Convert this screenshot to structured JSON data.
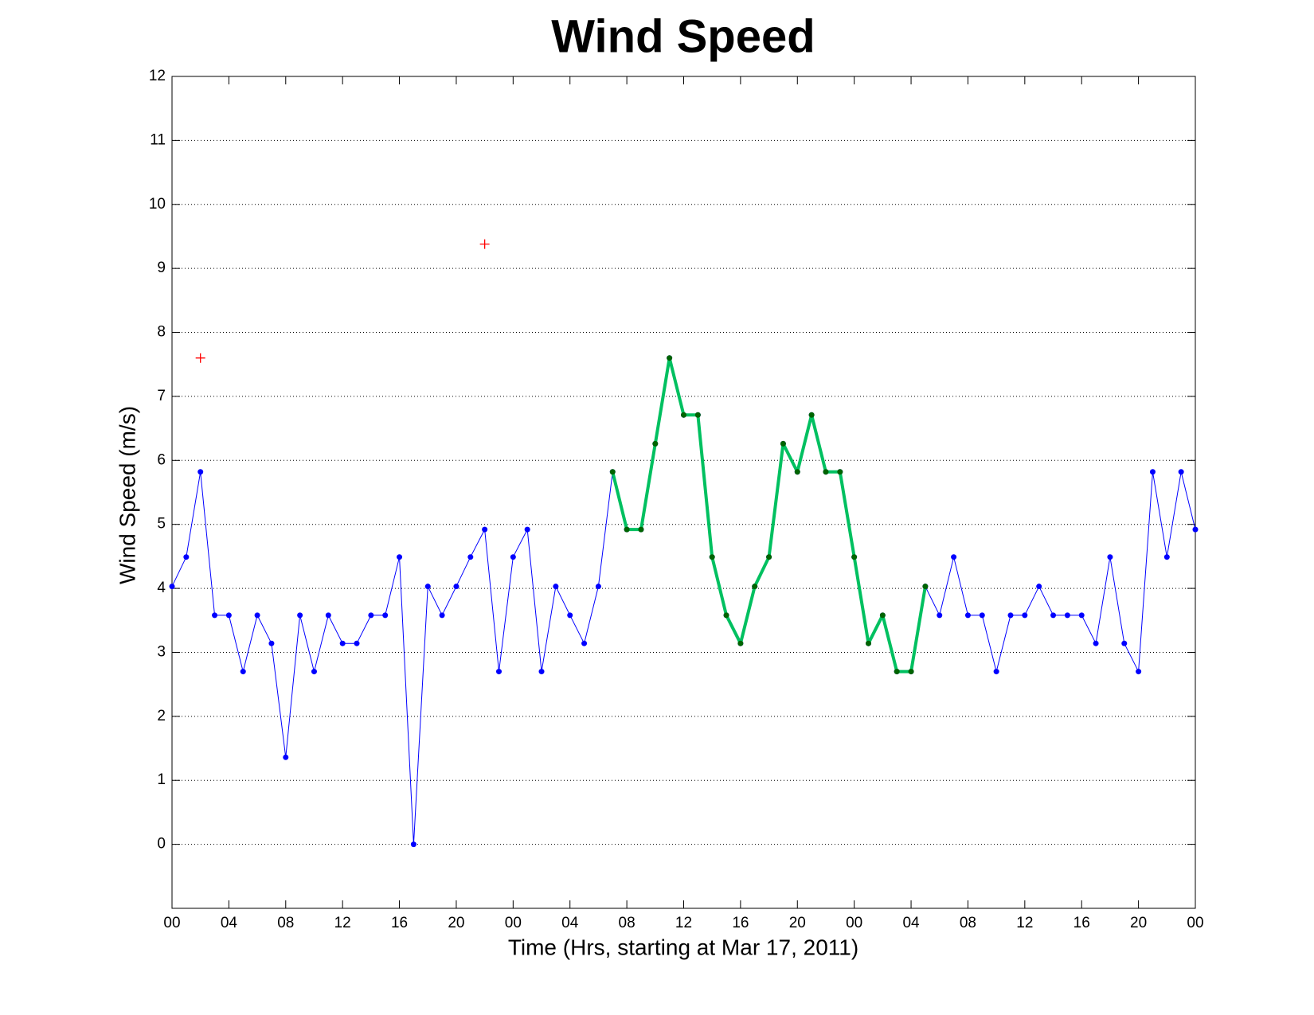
{
  "chart_data": {
    "type": "line",
    "title": "Wind Speed",
    "x_label": "Time (Hrs, starting at Mar 17, 2011)",
    "y_label": "Wind Speed (m/s)",
    "xlim": [
      0,
      72
    ],
    "ylim": [
      -1,
      12
    ],
    "xticks": [
      {
        "value": 0,
        "label": "00"
      },
      {
        "value": 4,
        "label": "04"
      },
      {
        "value": 8,
        "label": "08"
      },
      {
        "value": 12,
        "label": "12"
      },
      {
        "value": 16,
        "label": "16"
      },
      {
        "value": 20,
        "label": "20"
      },
      {
        "value": 24,
        "label": "00"
      },
      {
        "value": 28,
        "label": "04"
      },
      {
        "value": 32,
        "label": "08"
      },
      {
        "value": 36,
        "label": "12"
      },
      {
        "value": 40,
        "label": "16"
      },
      {
        "value": 44,
        "label": "20"
      },
      {
        "value": 48,
        "label": "00"
      },
      {
        "value": 52,
        "label": "04"
      },
      {
        "value": 56,
        "label": "08"
      },
      {
        "value": 60,
        "label": "12"
      },
      {
        "value": 64,
        "label": "16"
      },
      {
        "value": 68,
        "label": "20"
      },
      {
        "value": 72,
        "label": "00"
      }
    ],
    "yticks": [
      0,
      1,
      2,
      3,
      4,
      5,
      6,
      7,
      8,
      9,
      10,
      11,
      12
    ],
    "grid": "y",
    "series": [
      {
        "color": "#0000ff",
        "marker_color": "#0000ff",
        "line_width": 1,
        "marker": "dot",
        "x": [
          0,
          1,
          2,
          3,
          4,
          5,
          6,
          7,
          8,
          9,
          10,
          11,
          12,
          13,
          14,
          15,
          16,
          17,
          18,
          19,
          20,
          21,
          22,
          23,
          24,
          25,
          26,
          27,
          28,
          29,
          30,
          31,
          32,
          33,
          34,
          35,
          36,
          37,
          38,
          39,
          40,
          41,
          42,
          43,
          44,
          45,
          46,
          47,
          48,
          49,
          50,
          51,
          52,
          53,
          54,
          55,
          56,
          57,
          58,
          59,
          60,
          61,
          62,
          63,
          64,
          65,
          66,
          67,
          68,
          69,
          70,
          71,
          72
        ],
        "values": [
          4.03,
          4.49,
          5.82,
          3.58,
          3.58,
          2.7,
          3.58,
          3.14,
          1.36,
          3.58,
          2.7,
          3.58,
          3.14,
          3.14,
          3.58,
          3.58,
          4.49,
          0,
          4.03,
          3.58,
          4.03,
          4.49,
          4.92,
          2.7,
          4.49,
          4.92,
          2.7,
          4.03,
          3.58,
          3.14,
          4.03,
          5.82,
          4.92,
          4.92,
          6.26,
          7.6,
          6.71,
          6.71,
          4.49,
          3.58,
          3.14,
          4.03,
          4.49,
          6.26,
          5.82,
          6.71,
          5.82,
          5.82,
          4.49,
          3.14,
          3.58,
          2.7,
          2.7,
          4.03,
          3.58,
          4.49,
          3.58,
          3.58,
          2.7,
          3.58,
          3.58,
          4.03,
          3.58,
          3.58,
          3.58,
          3.14,
          4.49,
          3.14,
          2.7,
          5.82,
          4.49,
          5.82,
          4.92
        ]
      },
      {
        "color": "#00c060",
        "marker_color": "#006400",
        "line_width": 4,
        "marker": "dot",
        "x": [
          31,
          32,
          33,
          34,
          35,
          36,
          37,
          38,
          39,
          40,
          41,
          42,
          43,
          44,
          45,
          46,
          47,
          48,
          49,
          50,
          51,
          52,
          53
        ],
        "values": [
          5.82,
          4.92,
          4.92,
          6.26,
          7.6,
          6.71,
          6.71,
          4.49,
          3.58,
          3.14,
          4.03,
          4.49,
          6.26,
          5.82,
          6.71,
          5.82,
          5.82,
          4.49,
          3.14,
          3.58,
          2.7,
          2.7,
          4.03
        ]
      },
      {
        "color": "#ff0000",
        "marker_color": "#ff0000",
        "line_width": 0,
        "marker": "plus",
        "x": [
          2,
          22
        ],
        "values": [
          7.6,
          9.38
        ]
      }
    ]
  }
}
